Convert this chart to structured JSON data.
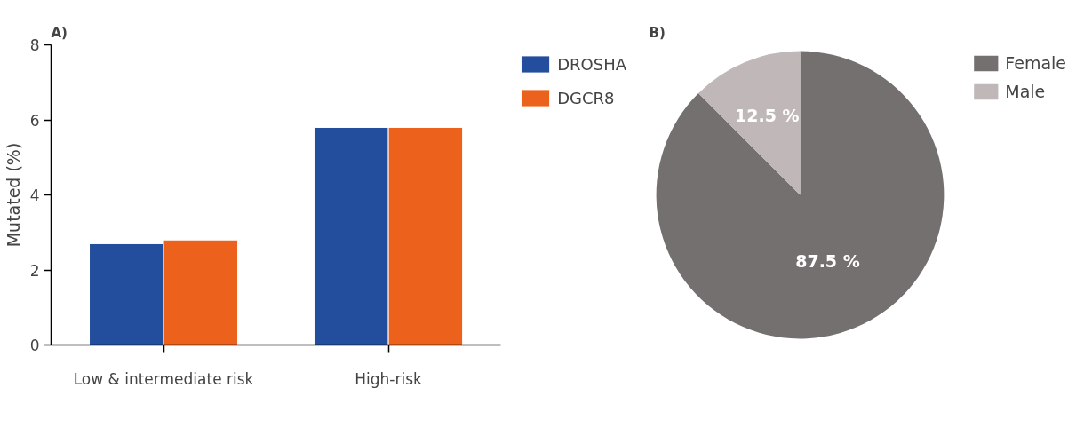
{
  "chart_data": [
    {
      "type": "bar",
      "title": "A)",
      "ylabel": "Mutated (%)",
      "categories": [
        "Low & intermediate risk",
        "High-risk"
      ],
      "series": [
        {
          "name": "DROSHA",
          "color": "#224e9d",
          "values": [
            2.7,
            5.8
          ]
        },
        {
          "name": "DGCR8",
          "color": "#ec621c",
          "values": [
            2.8,
            5.8
          ]
        }
      ],
      "ylim": [
        0,
        8
      ],
      "yticks": [
        0,
        2,
        4,
        6,
        8
      ],
      "grid": false,
      "legend": "top right"
    },
    {
      "type": "pie",
      "title": "B)",
      "categories": [
        "Female",
        "Male"
      ],
      "values": [
        87.5,
        12.5
      ],
      "colors": [
        "#757070",
        "#c0b8b8"
      ],
      "value_labels": [
        "87.5 %",
        "12.5 %"
      ],
      "legend": "top right"
    }
  ]
}
